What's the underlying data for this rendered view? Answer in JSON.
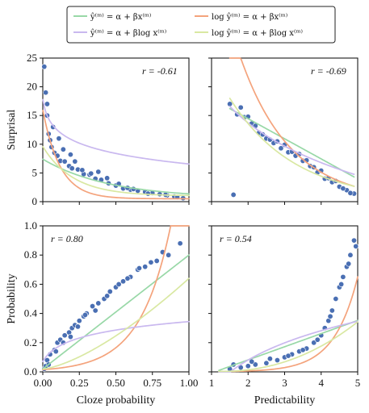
{
  "chart_data": [
    {
      "type": "scatter",
      "title": "",
      "xlabel": "",
      "ylabel": "Surprisal",
      "xlim": [
        0,
        1
      ],
      "ylim": [
        0,
        25
      ],
      "xticks": [
        0.0,
        0.25,
        0.5,
        0.75,
        1.0
      ],
      "yticks": [
        0,
        5,
        10,
        15,
        20,
        25
      ],
      "xtick_labels": [],
      "ytick_labels": [
        "0",
        "5",
        "10",
        "15",
        "20",
        "25"
      ],
      "annotation": "r = -0.61",
      "series": [
        {
          "x": [
            0.01,
            0.02,
            0.03,
            0.04,
            0.05,
            0.06,
            0.08,
            0.1,
            0.12,
            0.15,
            0.18,
            0.2,
            0.24,
            0.28,
            0.32,
            0.36,
            0.4,
            0.45,
            0.5,
            0.55,
            0.6,
            0.65,
            0.7,
            0.75,
            0.8,
            0.85,
            0.9,
            0.03,
            0.07,
            0.11,
            0.14,
            0.19,
            0.22,
            0.27,
            0.33,
            0.38,
            0.44,
            0.52,
            0.58,
            0.62,
            0.72,
            0.84,
            0.92,
            0.96
          ],
          "y": [
            23.5,
            19.0,
            15.0,
            11.8,
            10.7,
            9.5,
            8.5,
            8.0,
            7.1,
            7.0,
            6.2,
            5.8,
            5.6,
            4.8,
            4.7,
            4.0,
            3.8,
            3.2,
            2.8,
            2.3,
            2.1,
            1.9,
            1.7,
            1.5,
            1.3,
            1.1,
            0.9,
            17.0,
            13.0,
            11.0,
            9.1,
            8.2,
            7.0,
            5.5,
            4.9,
            5.2,
            4.1,
            3.1,
            2.4,
            2.2,
            1.4,
            1.2,
            0.8,
            0.6
          ]
        }
      ]
    },
    {
      "type": "scatter",
      "title": "",
      "xlabel": "",
      "ylabel": "",
      "xlim": [
        1,
        5
      ],
      "ylim": [
        0,
        25
      ],
      "xticks": [
        1,
        2,
        3,
        4,
        5
      ],
      "yticks": [
        0,
        5,
        10,
        15,
        20,
        25
      ],
      "xtick_labels": [],
      "ytick_labels": [],
      "annotation": "r = -0.69",
      "series": [
        {
          "x": [
            1.5,
            1.7,
            1.9,
            2.1,
            2.3,
            2.5,
            2.7,
            2.9,
            3.1,
            3.3,
            3.5,
            3.7,
            3.9,
            4.1,
            4.3,
            4.5,
            4.7,
            4.9,
            1.6,
            2.0,
            2.4,
            2.8,
            3.2,
            3.6,
            4.0,
            4.4,
            4.8,
            1.8,
            2.2,
            2.6,
            3.0,
            3.4,
            3.8,
            4.2,
            4.6
          ],
          "y": [
            17.0,
            15.2,
            14.7,
            13.6,
            12.0,
            11.0,
            10.2,
            9.3,
            8.6,
            8.0,
            7.1,
            6.2,
            5.1,
            4.0,
            3.4,
            2.6,
            2.0,
            1.4,
            1.2,
            14.8,
            11.7,
            10.5,
            8.7,
            7.2,
            5.4,
            3.6,
            1.5,
            16.4,
            13.2,
            10.8,
            9.9,
            8.3,
            6.0,
            4.1,
            2.3
          ]
        }
      ]
    },
    {
      "type": "scatter",
      "title": "",
      "xlabel": "Cloze probability",
      "ylabel": "Probability",
      "xlim": [
        0,
        1
      ],
      "ylim": [
        0,
        1
      ],
      "xticks": [
        0.0,
        0.25,
        0.5,
        0.75,
        1.0
      ],
      "yticks": [
        0.0,
        0.2,
        0.4,
        0.6,
        0.8,
        1.0
      ],
      "xtick_labels": [
        "0.00",
        "0.25",
        "0.50",
        "0.75",
        "1.00"
      ],
      "ytick_labels": [
        "0.0",
        "0.2",
        "0.4",
        "0.6",
        "0.8",
        "1.0"
      ],
      "annotation": "r = 0.80",
      "series": [
        {
          "x": [
            0.01,
            0.02,
            0.03,
            0.05,
            0.08,
            0.1,
            0.12,
            0.15,
            0.18,
            0.2,
            0.22,
            0.25,
            0.28,
            0.3,
            0.34,
            0.38,
            0.42,
            0.46,
            0.5,
            0.55,
            0.6,
            0.65,
            0.7,
            0.78,
            0.86,
            0.94,
            0.04,
            0.09,
            0.14,
            0.19,
            0.24,
            0.29,
            0.36,
            0.44,
            0.52,
            0.58,
            0.66,
            0.74,
            0.82
          ],
          "y": [
            0.02,
            0.04,
            0.08,
            0.12,
            0.15,
            0.2,
            0.22,
            0.25,
            0.27,
            0.3,
            0.32,
            0.35,
            0.38,
            0.4,
            0.45,
            0.47,
            0.5,
            0.55,
            0.58,
            0.62,
            0.65,
            0.7,
            0.72,
            0.76,
            0.8,
            0.88,
            0.05,
            0.14,
            0.2,
            0.24,
            0.31,
            0.39,
            0.42,
            0.52,
            0.6,
            0.64,
            0.71,
            0.75,
            0.82
          ]
        }
      ]
    },
    {
      "type": "scatter",
      "title": "",
      "xlabel": "Predictability",
      "ylabel": "",
      "xlim": [
        1,
        5
      ],
      "ylim": [
        0,
        1
      ],
      "xticks": [
        1,
        2,
        3,
        4,
        5
      ],
      "yticks": [
        0.0,
        0.2,
        0.4,
        0.6,
        0.8,
        1.0
      ],
      "xtick_labels": [
        "1",
        "2",
        "3",
        "4",
        "5"
      ],
      "ytick_labels": [],
      "annotation": "r = 0.54",
      "series": [
        {
          "x": [
            1.5,
            1.8,
            2.0,
            2.2,
            2.5,
            2.8,
            3.0,
            3.2,
            3.4,
            3.6,
            3.8,
            4.0,
            4.1,
            4.2,
            4.3,
            4.4,
            4.5,
            4.6,
            4.7,
            4.8,
            4.9,
            1.6,
            2.1,
            2.6,
            3.1,
            3.5,
            3.9,
            4.25,
            4.55,
            4.75,
            4.95
          ],
          "y": [
            0.02,
            0.03,
            0.04,
            0.05,
            0.06,
            0.08,
            0.1,
            0.12,
            0.14,
            0.16,
            0.2,
            0.25,
            0.3,
            0.35,
            0.42,
            0.5,
            0.58,
            0.65,
            0.72,
            0.8,
            0.9,
            0.05,
            0.07,
            0.09,
            0.11,
            0.15,
            0.22,
            0.38,
            0.6,
            0.74,
            0.86
          ]
        }
      ]
    }
  ],
  "legend": {
    "placement": "top-center",
    "items": [
      {
        "label": "ŷ⁽ᵐ⁾ = α + βx⁽ᵐ⁾",
        "color": "#98d8a7"
      },
      {
        "label": "log ŷ⁽ᵐ⁾ = α + βx⁽ᵐ⁾",
        "color": "#f4a37c"
      },
      {
        "label": "ŷ⁽ᵐ⁾ = α + βlog x⁽ᵐ⁾",
        "color": "#c9b8ef"
      },
      {
        "label": "log ŷ⁽ᵐ⁾ = α + βlog x⁽ᵐ⁾",
        "color": "#d9e8a2"
      }
    ]
  },
  "point_color": "#4a6fb3",
  "point_edge_color": "#ffffff",
  "panel_border_color": "#1a1a1a"
}
